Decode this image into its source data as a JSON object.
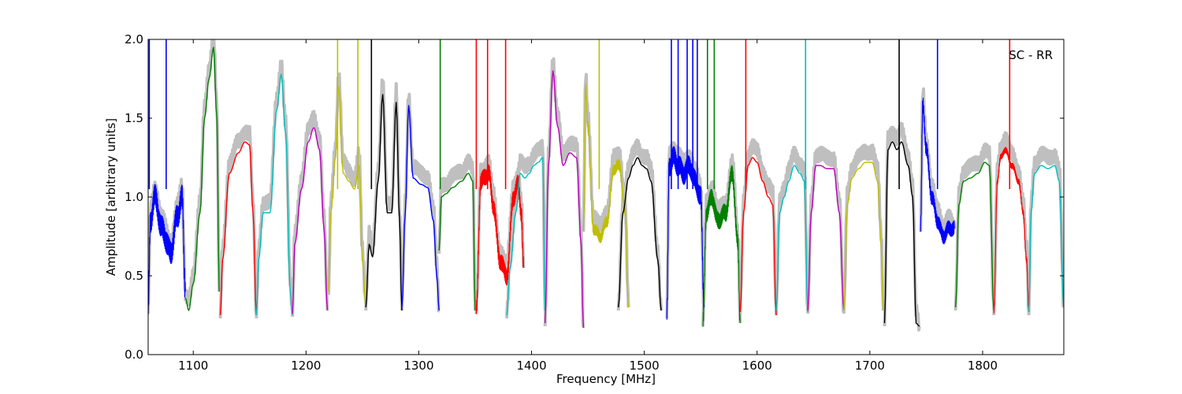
{
  "chart_data": {
    "type": "line",
    "title": "",
    "xlabel": "Frequency [MHz]",
    "ylabel": "Amplitude [arbitrary units]",
    "annotation": "SC - RR",
    "xlim": [
      1060,
      1872
    ],
    "ylim": [
      0.0,
      2.0
    ],
    "x_ticks": [
      1100,
      1200,
      1300,
      1400,
      1500,
      1600,
      1700,
      1800
    ],
    "x_tick_labels": [
      "1100",
      "1200",
      "1300",
      "1400",
      "1500",
      "1600",
      "1700",
      "1800"
    ],
    "y_ticks": [
      0.0,
      0.5,
      1.0,
      1.5,
      2.0
    ],
    "y_tick_labels": [
      "0.0",
      "0.5",
      "1.0",
      "1.5",
      "2.0"
    ],
    "grid": false,
    "colors": {
      "background_trace": "#bfbfbf",
      "blue": "#0000ff",
      "green": "#008000",
      "red": "#ff0000",
      "cyan": "#00bfbf",
      "magenta": "#bf00bf",
      "yellow": "#bfbf00",
      "black": "#000000"
    },
    "series": [
      {
        "color": "blue",
        "noise": 0.08,
        "x": [
          1060,
          1062,
          1066,
          1072,
          1080,
          1086,
          1090,
          1093
        ],
        "y": [
          0.28,
          0.85,
          1.0,
          0.8,
          0.65,
          0.88,
          1.0,
          0.4
        ]
      },
      {
        "color": "green",
        "noise": 0.0,
        "x": [
          1093,
          1096,
          1100,
          1106,
          1110,
          1114,
          1118,
          1121,
          1123
        ],
        "y": [
          0.36,
          0.28,
          0.45,
          0.9,
          1.5,
          1.75,
          1.95,
          1.5,
          0.4
        ]
      },
      {
        "color": "red",
        "noise": 0.0,
        "x": [
          1124,
          1126,
          1132,
          1140,
          1146,
          1150,
          1153,
          1156
        ],
        "y": [
          0.25,
          0.6,
          1.15,
          1.28,
          1.35,
          1.33,
          0.9,
          0.25
        ]
      },
      {
        "color": "cyan",
        "noise": 0.0,
        "x": [
          1156,
          1158,
          1162,
          1168,
          1174,
          1178,
          1182,
          1186,
          1188
        ],
        "y": [
          0.25,
          0.6,
          0.9,
          0.9,
          1.55,
          1.78,
          1.4,
          0.4,
          0.25
        ]
      },
      {
        "color": "magenta",
        "noise": 0.0,
        "x": [
          1188,
          1190,
          1196,
          1202,
          1207,
          1212,
          1216,
          1219
        ],
        "y": [
          0.26,
          0.7,
          1.05,
          1.35,
          1.44,
          1.3,
          0.8,
          0.28
        ]
      },
      {
        "color": "yellow",
        "noise": 0.0,
        "x": [
          1220,
          1222,
          1226,
          1229,
          1233,
          1238,
          1243,
          1247,
          1250,
          1253
        ],
        "y": [
          0.4,
          0.9,
          1.25,
          1.7,
          1.15,
          1.1,
          1.05,
          1.2,
          0.6,
          0.32
        ]
      },
      {
        "color": "black",
        "noise": 0.0,
        "x": [
          1253,
          1256,
          1259,
          1264,
          1268,
          1272,
          1276,
          1280,
          1283,
          1285
        ],
        "y": [
          0.3,
          0.7,
          0.62,
          1.1,
          1.65,
          0.9,
          0.9,
          1.6,
          0.85,
          0.28
        ]
      },
      {
        "color": "blue",
        "noise": 0.0,
        "x": [
          1285,
          1288,
          1291,
          1295,
          1302,
          1308,
          1313,
          1316,
          1318
        ],
        "y": [
          0.3,
          0.9,
          1.58,
          1.12,
          1.08,
          1.06,
          0.85,
          0.5,
          0.28
        ]
      },
      {
        "color": "green",
        "noise": 0.0,
        "x": [
          1318,
          1320,
          1324,
          1330,
          1338,
          1344,
          1348,
          1350
        ],
        "y": [
          0.66,
          1.0,
          1.02,
          1.06,
          1.1,
          1.15,
          1.1,
          0.28
        ]
      },
      {
        "color": "red",
        "noise": 0.06,
        "x": [
          1351,
          1355,
          1362,
          1366,
          1372,
          1378,
          1384,
          1388,
          1391,
          1393
        ],
        "y": [
          0.28,
          1.1,
          1.15,
          0.95,
          0.6,
          0.5,
          1.0,
          1.08,
          0.9,
          0.55
        ]
      },
      {
        "color": "cyan",
        "noise": 0.0,
        "x": [
          1378,
          1381,
          1386,
          1390,
          1394,
          1398,
          1402,
          1406,
          1410,
          1412
        ],
        "y": [
          0.25,
          0.55,
          0.9,
          1.15,
          1.12,
          1.15,
          1.2,
          1.22,
          1.25,
          0.28
        ]
      },
      {
        "color": "magenta",
        "noise": 0.0,
        "x": [
          1412,
          1415,
          1419,
          1423,
          1428,
          1434,
          1440,
          1444,
          1446
        ],
        "y": [
          0.2,
          1.2,
          1.8,
          1.45,
          1.2,
          1.28,
          1.25,
          0.7,
          0.17
        ]
      },
      {
        "color": "yellow",
        "noise": 0.04,
        "x": [
          1446,
          1448,
          1450,
          1455,
          1461,
          1467,
          1473,
          1478,
          1483,
          1486
        ],
        "y": [
          0.8,
          1.7,
          1.45,
          0.8,
          0.75,
          0.85,
          1.18,
          1.2,
          0.9,
          0.3
        ]
      },
      {
        "color": "black",
        "noise": 0.0,
        "x": [
          1477,
          1481,
          1486,
          1490,
          1494,
          1498,
          1502,
          1506,
          1512,
          1515
        ],
        "y": [
          0.3,
          0.9,
          1.12,
          1.2,
          1.25,
          1.2,
          1.18,
          1.1,
          0.6,
          0.28
        ]
      },
      {
        "color": "blue",
        "noise": 0.07,
        "x": [
          1520,
          1522,
          1526,
          1530,
          1535,
          1540,
          1545,
          1550,
          1553
        ],
        "y": [
          0.25,
          1.2,
          1.25,
          1.2,
          1.15,
          1.2,
          1.1,
          1.0,
          0.3
        ]
      },
      {
        "color": "green",
        "noise": 0.06,
        "x": [
          1552,
          1555,
          1560,
          1565,
          1572,
          1578,
          1583,
          1585
        ],
        "y": [
          0.2,
          0.9,
          1.0,
          0.85,
          0.9,
          1.15,
          0.7,
          0.2
        ]
      },
      {
        "color": "red",
        "noise": 0.0,
        "x": [
          1585,
          1588,
          1592,
          1596,
          1600,
          1605,
          1610,
          1614,
          1617
        ],
        "y": [
          0.27,
          0.9,
          1.2,
          1.25,
          1.22,
          1.1,
          1.0,
          0.95,
          0.25
        ]
      },
      {
        "color": "cyan",
        "noise": 0.0,
        "x": [
          1617,
          1620,
          1624,
          1628,
          1633,
          1638,
          1642,
          1645
        ],
        "y": [
          0.28,
          0.9,
          1.0,
          1.1,
          1.2,
          1.15,
          1.1,
          0.27
        ]
      },
      {
        "color": "magenta",
        "noise": 0.0,
        "x": [
          1645,
          1648,
          1652,
          1656,
          1662,
          1668,
          1673,
          1677
        ],
        "y": [
          0.28,
          0.9,
          1.2,
          1.2,
          1.18,
          1.18,
          0.9,
          0.28
        ]
      },
      {
        "color": "yellow",
        "noise": 0.0,
        "x": [
          1677,
          1680,
          1684,
          1690,
          1696,
          1702,
          1707,
          1710,
          1712
        ],
        "y": [
          0.28,
          0.95,
          1.12,
          1.18,
          1.22,
          1.22,
          1.1,
          0.7,
          0.28
        ]
      },
      {
        "color": "black",
        "noise": 0.0,
        "x": [
          1713,
          1716,
          1720,
          1724,
          1728,
          1734,
          1738,
          1741,
          1744
        ],
        "y": [
          0.2,
          1.3,
          1.35,
          1.3,
          1.35,
          1.2,
          1.0,
          0.2,
          0.18
        ]
      },
      {
        "color": "blue",
        "noise": 0.05,
        "x": [
          1745,
          1747,
          1750,
          1755,
          1760,
          1765,
          1770,
          1775
        ],
        "y": [
          0.8,
          1.6,
          1.3,
          1.0,
          0.85,
          0.75,
          0.8,
          0.8
        ]
      },
      {
        "color": "green",
        "noise": 0.0,
        "x": [
          1776,
          1779,
          1783,
          1789,
          1796,
          1802,
          1806,
          1810
        ],
        "y": [
          0.3,
          0.95,
          1.1,
          1.12,
          1.15,
          1.22,
          1.2,
          0.28
        ]
      },
      {
        "color": "red",
        "noise": 0.02,
        "x": [
          1810,
          1813,
          1816,
          1820,
          1826,
          1832,
          1836,
          1839,
          1841
        ],
        "y": [
          0.27,
          1.1,
          1.25,
          1.3,
          1.2,
          1.1,
          0.9,
          0.6,
          0.27
        ]
      },
      {
        "color": "cyan",
        "noise": 0.0,
        "x": [
          1841,
          1843,
          1846,
          1852,
          1858,
          1864,
          1868,
          1872
        ],
        "y": [
          0.27,
          0.9,
          1.15,
          1.2,
          1.18,
          1.2,
          1.1,
          0.3
        ]
      }
    ],
    "spikes": [
      {
        "color": "blue",
        "x": 1061
      },
      {
        "color": "blue",
        "x": 1076
      },
      {
        "color": "yellow",
        "x": 1228
      },
      {
        "color": "yellow",
        "x": 1246
      },
      {
        "color": "black",
        "x": 1258
      },
      {
        "color": "green",
        "x": 1319
      },
      {
        "color": "red",
        "x": 1351
      },
      {
        "color": "red",
        "x": 1361
      },
      {
        "color": "red",
        "x": 1377
      },
      {
        "color": "yellow",
        "x": 1460
      },
      {
        "color": "blue",
        "x": 1524
      },
      {
        "color": "blue",
        "x": 1530
      },
      {
        "color": "blue",
        "x": 1538
      },
      {
        "color": "blue",
        "x": 1543
      },
      {
        "color": "blue",
        "x": 1547
      },
      {
        "color": "green",
        "x": 1556
      },
      {
        "color": "green",
        "x": 1562
      },
      {
        "color": "red",
        "x": 1590
      },
      {
        "color": "cyan",
        "x": 1643
      },
      {
        "color": "black",
        "x": 1726
      },
      {
        "color": "blue",
        "x": 1760
      },
      {
        "color": "red",
        "x": 1824
      }
    ]
  }
}
